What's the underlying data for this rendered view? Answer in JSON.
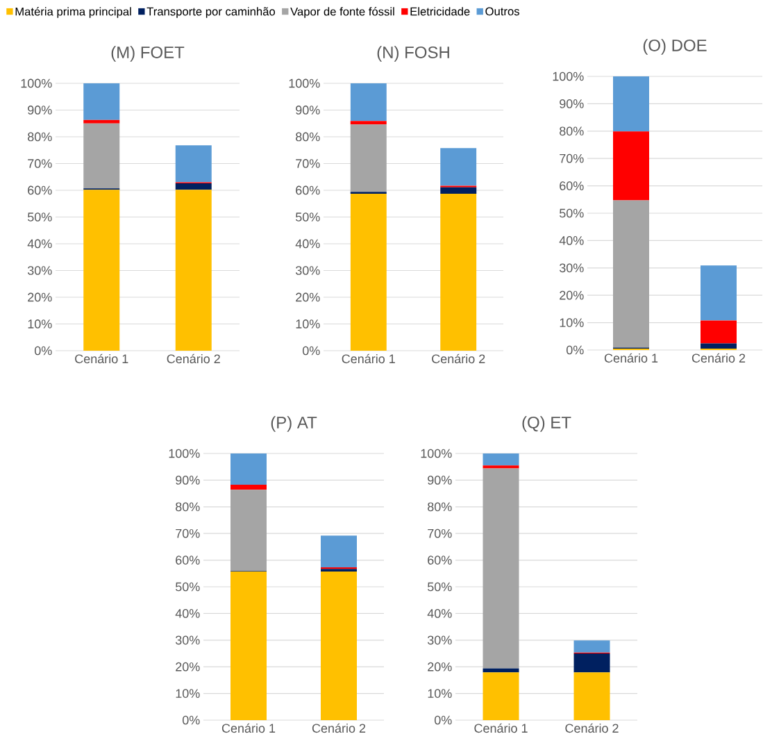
{
  "chart_data": [
    {
      "type": "bar",
      "stacked": true,
      "title": "(M) FOET",
      "categories": [
        "Cenário 1",
        "Cenário 2"
      ],
      "series": [
        {
          "name": "Matéria prima principal",
          "color": "#ffc000",
          "values": [
            60.2,
            60.2
          ]
        },
        {
          "name": "Transporte por caminhão",
          "color": "#002060",
          "values": [
            0.5,
            2.4
          ]
        },
        {
          "name": "Vapor de fonte fóssil",
          "color": "#a5a5a5",
          "values": [
            24.3,
            0
          ]
        },
        {
          "name": "Eletricidade",
          "color": "#ff0000",
          "values": [
            1.3,
            0.4
          ]
        },
        {
          "name": "Outros",
          "color": "#5b9bd5",
          "values": [
            13.7,
            13.8
          ]
        }
      ],
      "ylim": [
        0,
        100
      ],
      "yticks": [
        {
          "value": 0,
          "label": "0%"
        },
        {
          "value": 10,
          "label": "10%"
        },
        {
          "value": 20,
          "label": "20%"
        },
        {
          "value": 30,
          "label": "30%"
        },
        {
          "value": 40,
          "label": "40%"
        },
        {
          "value": 50,
          "label": "50%"
        },
        {
          "value": 60,
          "label": "60%"
        },
        {
          "value": 70,
          "label": "70%"
        },
        {
          "value": 80,
          "label": "80%"
        },
        {
          "value": 90,
          "label": "90%"
        },
        {
          "value": 100,
          "label": "100%"
        }
      ],
      "grid": "y",
      "legend": "top"
    },
    {
      "type": "bar",
      "stacked": true,
      "title": "(N) FOSH",
      "categories": [
        "Cenário 1",
        "Cenário 2"
      ],
      "series": [
        {
          "color": "#ffc000",
          "values": [
            58.7,
            58.7
          ]
        },
        {
          "color": "#002060",
          "values": [
            0.7,
            2.4
          ]
        },
        {
          "color": "#a5a5a5",
          "values": [
            25.2,
            0
          ]
        },
        {
          "color": "#ff0000",
          "values": [
            1.3,
            0.6
          ]
        },
        {
          "color": "#5b9bd5",
          "values": [
            14.1,
            14.1
          ]
        }
      ],
      "ylim": [
        0,
        100
      ],
      "yticks": [
        {
          "value": 0,
          "label": "0%"
        },
        {
          "value": 10,
          "label": "10%"
        },
        {
          "value": 20,
          "label": "20%"
        },
        {
          "value": 30,
          "label": "30%"
        },
        {
          "value": 40,
          "label": "40%"
        },
        {
          "value": 50,
          "label": "50%"
        },
        {
          "value": 60,
          "label": "60%"
        },
        {
          "value": 70,
          "label": "70%"
        },
        {
          "value": 80,
          "label": "80%"
        },
        {
          "value": 90,
          "label": "90%"
        },
        {
          "value": 100,
          "label": "100%"
        }
      ],
      "grid": "y"
    },
    {
      "type": "bar",
      "stacked": true,
      "title": "(O) DOE",
      "categories": [
        "Cenário 1",
        "Cenário 2"
      ],
      "series": [
        {
          "color": "#ffc000",
          "values": [
            0.5,
            0.5
          ]
        },
        {
          "color": "#002060",
          "values": [
            0.4,
            1.9
          ]
        },
        {
          "color": "#a5a5a5",
          "values": [
            53.8,
            0
          ]
        },
        {
          "color": "#ff0000",
          "values": [
            25.2,
            8.4
          ]
        },
        {
          "color": "#5b9bd5",
          "values": [
            20.1,
            20.1
          ]
        }
      ],
      "ylim": [
        0,
        100
      ],
      "yticks": [
        {
          "value": 0,
          "label": "0%"
        },
        {
          "value": 10,
          "label": "10%"
        },
        {
          "value": 20,
          "label": "20%"
        },
        {
          "value": 30,
          "label": "30%"
        },
        {
          "value": 40,
          "label": "40%"
        },
        {
          "value": 50,
          "label": "50%"
        },
        {
          "value": 60,
          "label": "60%"
        },
        {
          "value": 70,
          "label": "70%"
        },
        {
          "value": 80,
          "label": "80%"
        },
        {
          "value": 90,
          "label": "90%"
        },
        {
          "value": 100,
          "label": "100%"
        }
      ],
      "grid": "y"
    },
    {
      "type": "bar",
      "stacked": true,
      "title": "(P) AT",
      "categories": [
        "Cenário 1",
        "Cenário 2"
      ],
      "series": [
        {
          "color": "#ffc000",
          "values": [
            55.7,
            55.7
          ]
        },
        {
          "color": "#002060",
          "values": [
            0.2,
            1.0
          ]
        },
        {
          "color": "#a5a5a5",
          "values": [
            30.5,
            0
          ]
        },
        {
          "color": "#ff0000",
          "values": [
            1.9,
            0.6
          ]
        },
        {
          "color": "#5b9bd5",
          "values": [
            11.7,
            11.9
          ]
        }
      ],
      "ylim": [
        0,
        100
      ],
      "yticks": [
        {
          "value": 0,
          "label": "0%"
        },
        {
          "value": 10,
          "label": "10%"
        },
        {
          "value": 20,
          "label": "20%"
        },
        {
          "value": 30,
          "label": "30%"
        },
        {
          "value": 40,
          "label": "40%"
        },
        {
          "value": 50,
          "label": "50%"
        },
        {
          "value": 60,
          "label": "60%"
        },
        {
          "value": 70,
          "label": "70%"
        },
        {
          "value": 80,
          "label": "80%"
        },
        {
          "value": 90,
          "label": "90%"
        },
        {
          "value": 100,
          "label": "100%"
        }
      ],
      "grid": "y"
    },
    {
      "type": "bar",
      "stacked": true,
      "title": "(Q) ET",
      "categories": [
        "Cenário 1",
        "Cenário 2"
      ],
      "series": [
        {
          "color": "#ffc000",
          "values": [
            17.9,
            17.9
          ]
        },
        {
          "color": "#002060",
          "values": [
            1.5,
            7.1
          ]
        },
        {
          "color": "#a5a5a5",
          "values": [
            75.0,
            0
          ]
        },
        {
          "color": "#ff0000",
          "values": [
            1.1,
            0.3
          ]
        },
        {
          "color": "#5b9bd5",
          "values": [
            4.5,
            4.6
          ]
        }
      ],
      "ylim": [
        0,
        100
      ],
      "yticks": [
        {
          "value": 0,
          "label": "0%"
        },
        {
          "value": 10,
          "label": "10%"
        },
        {
          "value": 20,
          "label": "20%"
        },
        {
          "value": 30,
          "label": "30%"
        },
        {
          "value": 40,
          "label": "40%"
        },
        {
          "value": 50,
          "label": "50%"
        },
        {
          "value": 60,
          "label": "60%"
        },
        {
          "value": 70,
          "label": "70%"
        },
        {
          "value": 80,
          "label": "80%"
        },
        {
          "value": 90,
          "label": "90%"
        },
        {
          "value": 100,
          "label": "100%"
        }
      ],
      "grid": "y"
    }
  ]
}
